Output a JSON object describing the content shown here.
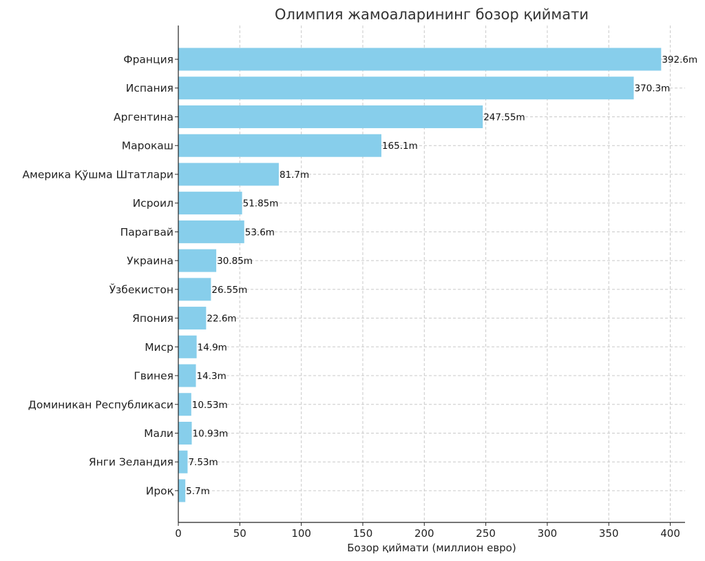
{
  "chart_data": {
    "type": "bar",
    "orientation": "horizontal",
    "title": "Олимпия жамоаларининг бозор қиймати",
    "xlabel": "Бозор қиймати (миллион евро)",
    "ylabel": "",
    "xlim": [
      0,
      412
    ],
    "xticks": [
      0,
      50,
      100,
      150,
      200,
      250,
      300,
      350,
      400
    ],
    "grid": true,
    "bar_color": "#87ceeb",
    "categories": [
      "Франция",
      "Испания",
      "Аргентина",
      "Марокаш",
      "Америка Қўшма Штатлари",
      "Исроил",
      "Парагвай",
      "Украина",
      "Ўзбекистон",
      "Япония",
      "Миср",
      "Гвинея",
      "Доминикан Республикаси",
      "Мали",
      "Янги Зеландия",
      "Ироқ"
    ],
    "values": [
      392.6,
      370.3,
      247.55,
      165.1,
      81.7,
      51.85,
      53.6,
      30.85,
      26.55,
      22.6,
      14.9,
      14.3,
      10.53,
      10.93,
      7.53,
      5.7
    ],
    "data_labels": [
      "392.6m",
      "370.3m",
      "247.55m",
      "165.1m",
      "81.7m",
      "51.85m",
      "53.6m",
      "30.85m",
      "26.55m",
      "22.6m",
      "14.9m",
      "14.3m",
      "10.53m",
      "10.93m",
      "7.53m",
      "5.7m"
    ]
  }
}
